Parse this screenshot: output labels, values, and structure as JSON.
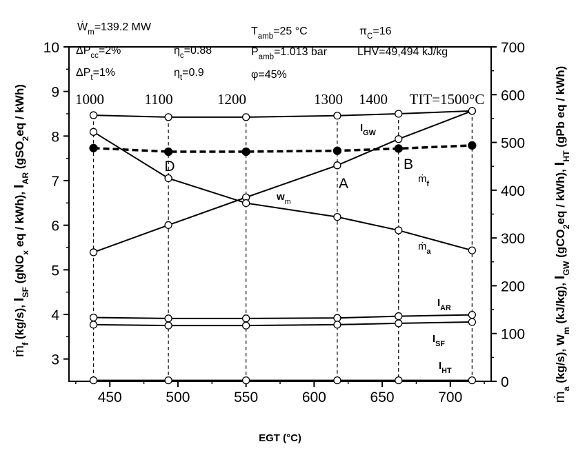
{
  "chart_data": {
    "type": "line",
    "xlabel": "EGT (°C)",
    "ylabel_left": "ṁf (kg/s), ISF (gNOx eq / kWh), IAR (gSO2eq / kWh)",
    "ylabel_right": "ṁa (kg/s), wm (kJ/kg), IGW (gCO2eq / kWh), IHT (gPb eq / kWh)",
    "xlim": [
      420,
      730
    ],
    "ylim_left": [
      2.5,
      10
    ],
    "ylim_right": [
      0,
      700
    ],
    "x_ticks": [
      "450",
      "500",
      "550",
      "600",
      "650",
      "700"
    ],
    "y_left_ticks": [
      "3",
      "4",
      "5",
      "6",
      "7",
      "8",
      "9",
      "10"
    ],
    "y_right_ticks": [
      "0",
      "100",
      "200",
      "300",
      "400",
      "500",
      "600",
      "700"
    ],
    "tit_labels": [
      "1000",
      "1100",
      "1200",
      "1300",
      "1400",
      "TIT=1500°C"
    ],
    "x": [
      438,
      493,
      550,
      617,
      662,
      716
    ],
    "series": [
      {
        "name": "IGW",
        "axis": "right",
        "marker": "open",
        "values": [
          557,
          553,
          553,
          556,
          560,
          566
        ]
      },
      {
        "name": "ṁf",
        "axis": "left",
        "marker": "filled",
        "dashed": true,
        "values": [
          7.73,
          7.65,
          7.65,
          7.67,
          7.72,
          7.79
        ]
      },
      {
        "name": "wm",
        "axis": "right",
        "marker": "open",
        "values": [
          270,
          327,
          385,
          452,
          507,
          566
        ]
      },
      {
        "name": "ṁa",
        "axis": "right",
        "marker": "open",
        "values": [
          522,
          425,
          373,
          344,
          316,
          274
        ]
      },
      {
        "name": "IAR",
        "axis": "left",
        "marker": "open",
        "values": [
          3.93,
          3.91,
          3.91,
          3.92,
          3.96,
          3.99
        ]
      },
      {
        "name": "ISF",
        "axis": "left",
        "marker": "open",
        "values": [
          3.77,
          3.75,
          3.75,
          3.77,
          3.8,
          3.83
        ]
      },
      {
        "name": "IHT",
        "axis": "right",
        "marker": "open",
        "values": [
          2,
          2,
          2,
          2,
          2,
          2
        ]
      }
    ],
    "point_labels": [
      "D",
      "A",
      "B"
    ],
    "parameters": [
      "Ẇm=139.2 MW",
      "ΔPcc=2%",
      "ΔPt=1%",
      "ηc=0.88",
      "ηt=0.9",
      "Tamb=25 °C",
      "Pamb=1.013 bar",
      "φ=45%",
      "πC=16",
      "LHV=49,494 kJ/kg"
    ]
  }
}
